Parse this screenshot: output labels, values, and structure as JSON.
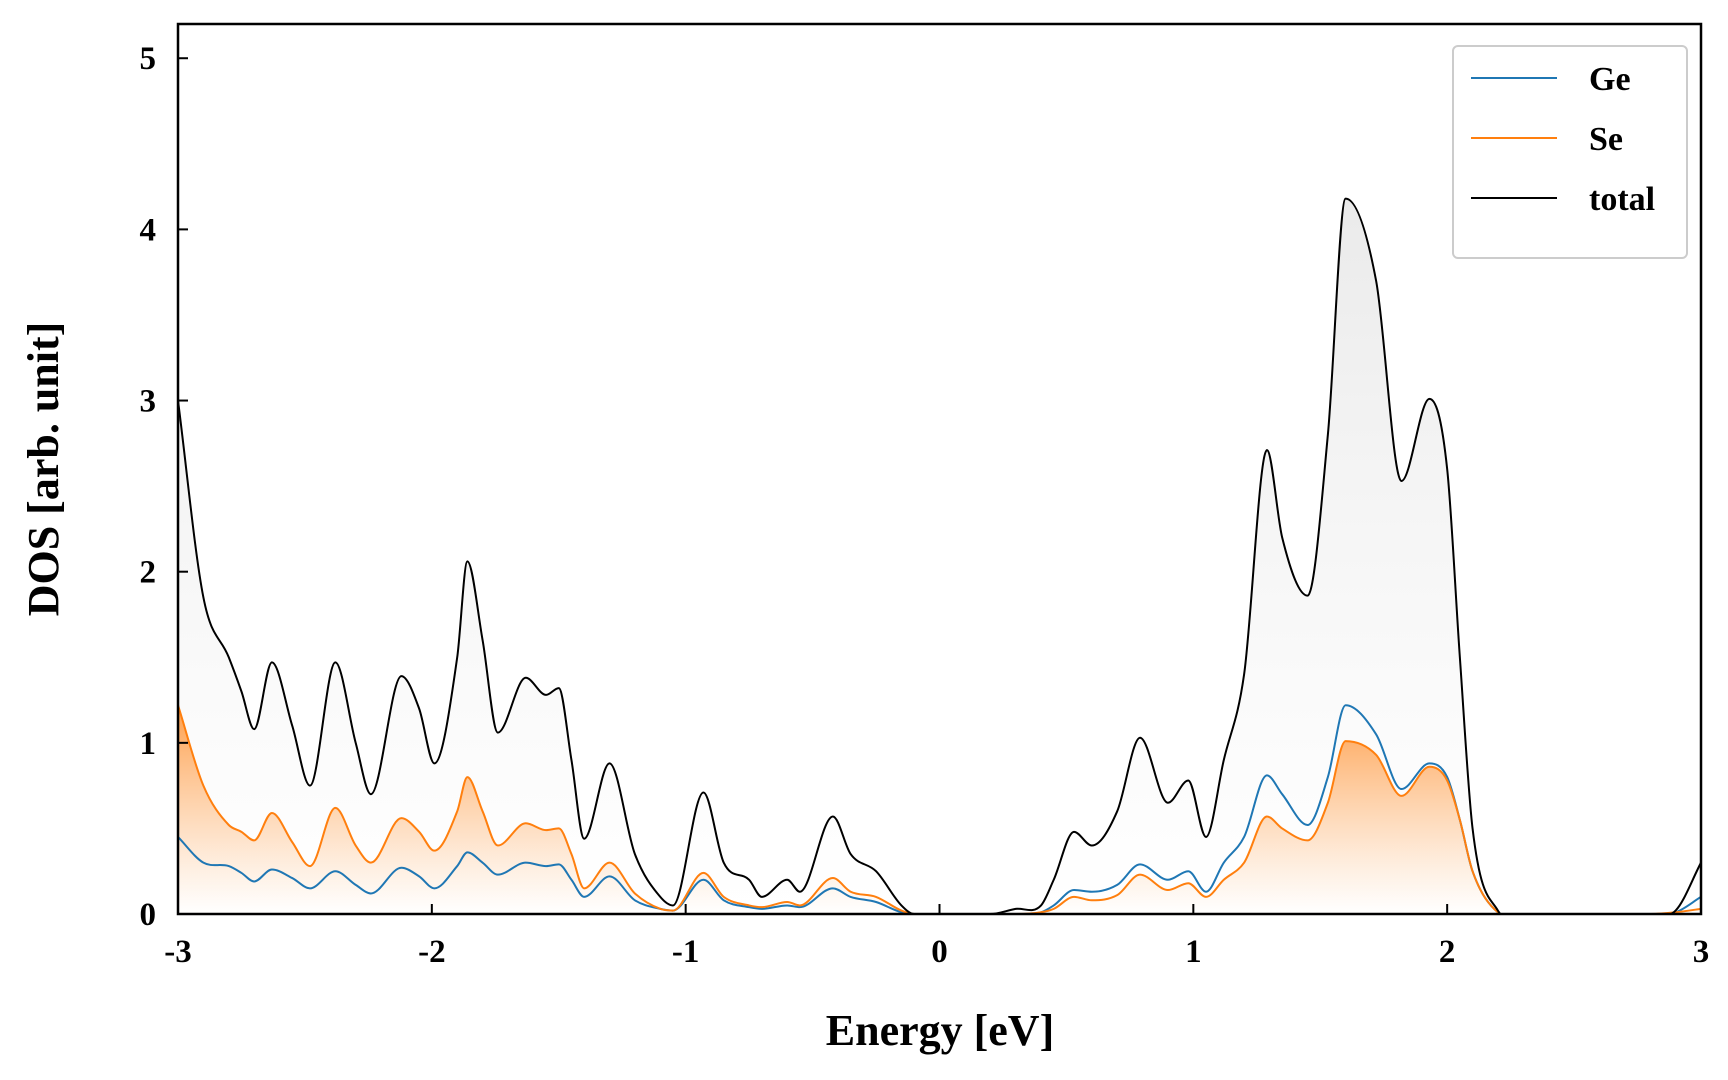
{
  "chart_data": {
    "type": "line",
    "xlabel": "Energy [eV]",
    "ylabel": "DOS [arb. unit]",
    "xlim": [
      -3,
      3
    ],
    "ylim": [
      0,
      5.2
    ],
    "xticks": [
      -3,
      -2,
      -1,
      0,
      1,
      2,
      3
    ],
    "yticks": [
      0,
      1,
      2,
      3,
      4,
      5
    ],
    "legend": "upper right",
    "x": [
      -3,
      -2.9,
      -2.8,
      -2.75,
      -2.7,
      -2.63,
      -2.55,
      -2.48,
      -2.38,
      -2.3,
      -2.24,
      -2.12,
      -2.05,
      -1.99,
      -1.9,
      -1.86,
      -1.8,
      -1.74,
      -1.63,
      -1.55,
      -1.5,
      -1.45,
      -1.4,
      -1.3,
      -1.2,
      -1.1,
      -1.05,
      -0.93,
      -0.85,
      -0.75,
      -0.7,
      -0.6,
      -0.55,
      -0.42,
      -0.35,
      -0.25,
      -0.15,
      -0.1,
      0,
      0.2,
      0.3,
      0.4,
      0.45,
      0.53,
      0.6,
      0.7,
      0.79,
      0.9,
      0.98,
      1.05,
      1.12,
      1.2,
      1.29,
      1.35,
      1.45,
      1.53,
      1.6,
      1.72,
      1.82,
      1.93,
      2.0,
      2.05,
      2.1,
      2.2,
      2.3,
      2.8,
      2.9,
      3.0
    ],
    "series": [
      {
        "name": "Ge",
        "color": "#1f77b4",
        "values": [
          0.45,
          0.3,
          0.28,
          0.24,
          0.19,
          0.26,
          0.21,
          0.15,
          0.25,
          0.17,
          0.12,
          0.27,
          0.22,
          0.15,
          0.28,
          0.36,
          0.3,
          0.23,
          0.3,
          0.28,
          0.29,
          0.2,
          0.1,
          0.22,
          0.08,
          0.03,
          0.02,
          0.2,
          0.08,
          0.04,
          0.03,
          0.05,
          0.04,
          0.15,
          0.1,
          0.07,
          0.01,
          0,
          0,
          0,
          0,
          0.01,
          0.05,
          0.14,
          0.13,
          0.17,
          0.29,
          0.2,
          0.25,
          0.13,
          0.3,
          0.45,
          0.81,
          0.7,
          0.52,
          0.8,
          1.22,
          1.05,
          0.73,
          0.88,
          0.8,
          0.55,
          0.25,
          0.01,
          0,
          0,
          0.01,
          0.1
        ]
      },
      {
        "name": "Se",
        "color": "#ff7f0e",
        "fill": true,
        "values": [
          1.22,
          0.75,
          0.52,
          0.48,
          0.43,
          0.59,
          0.42,
          0.28,
          0.62,
          0.4,
          0.3,
          0.56,
          0.48,
          0.37,
          0.6,
          0.8,
          0.6,
          0.4,
          0.53,
          0.49,
          0.5,
          0.35,
          0.15,
          0.3,
          0.12,
          0.03,
          0.02,
          0.24,
          0.1,
          0.05,
          0.04,
          0.07,
          0.05,
          0.21,
          0.13,
          0.1,
          0.02,
          0,
          0,
          0,
          0,
          0.01,
          0.03,
          0.1,
          0.08,
          0.11,
          0.23,
          0.14,
          0.18,
          0.1,
          0.2,
          0.3,
          0.57,
          0.5,
          0.43,
          0.65,
          1.01,
          0.93,
          0.69,
          0.86,
          0.78,
          0.55,
          0.25,
          0.01,
          0,
          0,
          0.01,
          0.03
        ]
      },
      {
        "name": "total",
        "color": "#000000",
        "fill": true,
        "values": [
          3.0,
          1.85,
          1.5,
          1.3,
          1.08,
          1.47,
          1.1,
          0.75,
          1.47,
          1.0,
          0.7,
          1.39,
          1.2,
          0.88,
          1.5,
          2.06,
          1.6,
          1.06,
          1.38,
          1.28,
          1.32,
          0.9,
          0.44,
          0.88,
          0.35,
          0.1,
          0.05,
          0.71,
          0.3,
          0.2,
          0.1,
          0.2,
          0.13,
          0.57,
          0.35,
          0.25,
          0.05,
          0,
          0,
          0,
          0.03,
          0.05,
          0.2,
          0.48,
          0.4,
          0.6,
          1.03,
          0.65,
          0.78,
          0.45,
          0.9,
          1.4,
          2.71,
          2.2,
          1.86,
          2.8,
          4.18,
          3.7,
          2.53,
          3.01,
          2.6,
          1.5,
          0.5,
          0.02,
          0,
          0,
          0.02,
          0.3
        ]
      }
    ]
  }
}
